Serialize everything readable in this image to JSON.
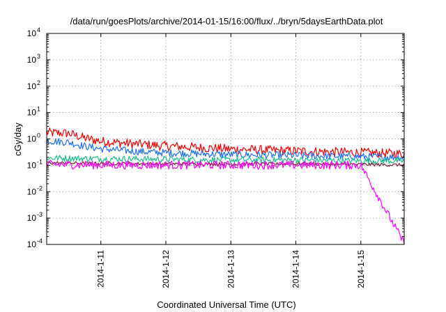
{
  "chart_data": {
    "type": "line",
    "title": "/data/run/goesPlots/archive/2014-01-15/16:00/flux/../bryn/5daysEarthData.plot",
    "xlabel": "Coordinated Universal Time (UTC)",
    "ylabel": "cGy/day",
    "yscale": "log",
    "ylim": [
      0.0001,
      10000
    ],
    "xlim": [
      "2014-01-10T04:00",
      "2014-01-15T16:00"
    ],
    "x_ticks": [
      {
        "label": "2014-1-11",
        "x": "2014-01-11T00:00"
      },
      {
        "label": "2014-1-12",
        "x": "2014-01-12T00:00"
      },
      {
        "label": "2014-1-13",
        "x": "2014-01-13T00:00"
      },
      {
        "label": "2014-1-14",
        "x": "2014-01-14T00:00"
      },
      {
        "label": "2014-1-15",
        "x": "2014-01-15T00:00"
      }
    ],
    "y_ticks": [
      {
        "base": "10",
        "exp": "-4",
        "value": 0.0001
      },
      {
        "base": "10",
        "exp": "-3",
        "value": 0.001
      },
      {
        "base": "10",
        "exp": "-2",
        "value": 0.01
      },
      {
        "base": "10",
        "exp": "-1",
        "value": 0.1
      },
      {
        "base": "10",
        "exp": "0",
        "value": 1
      },
      {
        "base": "10",
        "exp": "1",
        "value": 10
      },
      {
        "base": "10",
        "exp": "2",
        "value": 100
      },
      {
        "base": "10",
        "exp": "3",
        "value": 1000
      },
      {
        "base": "10",
        "exp": "4",
        "value": 10000
      }
    ],
    "grid": true,
    "series": [
      {
        "color": "#ff0000",
        "x": [
          "2014-01-10T04:00",
          "2014-01-10T12:00",
          "2014-01-10T18:00",
          "2014-01-11T00:00",
          "2014-01-11T12:00",
          "2014-01-12T00:00",
          "2014-01-13T00:00",
          "2014-01-14T00:00",
          "2014-01-15T00:00",
          "2014-01-15T16:00"
        ],
        "y": [
          1.6,
          1.5,
          1.0,
          0.75,
          0.6,
          0.5,
          0.38,
          0.32,
          0.28,
          0.25
        ]
      },
      {
        "color": "#1e6fff",
        "x": [
          "2014-01-10T04:00",
          "2014-01-10T12:00",
          "2014-01-10T18:00",
          "2014-01-11T00:00",
          "2014-01-11T12:00",
          "2014-01-12T00:00",
          "2014-01-13T00:00",
          "2014-01-14T00:00",
          "2014-01-15T00:00",
          "2014-01-15T16:00"
        ],
        "y": [
          0.8,
          0.7,
          0.5,
          0.4,
          0.32,
          0.28,
          0.24,
          0.22,
          0.2,
          0.19
        ]
      },
      {
        "color": "#1fbf8f",
        "x": [
          "2014-01-10T04:00",
          "2014-01-11T00:00",
          "2014-01-12T00:00",
          "2014-01-13T00:00",
          "2014-01-14T00:00",
          "2014-01-15T00:00",
          "2014-01-15T16:00"
        ],
        "y": [
          0.18,
          0.17,
          0.16,
          0.15,
          0.15,
          0.14,
          0.14
        ]
      },
      {
        "color": "#7a1f3a",
        "x": [
          "2014-01-10T04:00",
          "2014-01-11T00:00",
          "2014-01-12T00:00",
          "2014-01-13T00:00",
          "2014-01-14T00:00",
          "2014-01-15T00:00",
          "2014-01-15T16:00"
        ],
        "y": [
          0.12,
          0.115,
          0.11,
          0.11,
          0.11,
          0.105,
          0.1
        ]
      },
      {
        "color": "#ff00ff",
        "x": [
          "2014-01-10T04:00",
          "2014-01-11T00:00",
          "2014-01-12T00:00",
          "2014-01-13T00:00",
          "2014-01-14T00:00",
          "2014-01-15T00:00",
          "2014-01-15T16:00"
        ],
        "y": [
          0.1,
          0.095,
          0.095,
          0.095,
          0.095,
          0.095,
          0.0001
        ]
      }
    ]
  }
}
